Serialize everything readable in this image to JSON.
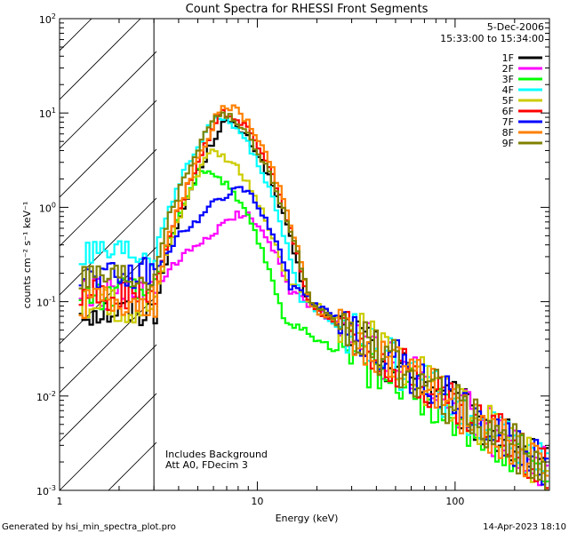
{
  "chart_data": {
    "type": "line",
    "title": "Count Spectra for RHESSI Front Segments",
    "xlabel": "Energy (keV)",
    "ylabel": "counts cm⁻² s⁻¹ keV⁻¹",
    "xscale": "log",
    "yscale": "log",
    "xlim": [
      1,
      300
    ],
    "ylim": [
      0.001,
      100
    ],
    "x_ticks": [
      {
        "value": 1,
        "label": "1"
      },
      {
        "value": 10,
        "label": "10"
      },
      {
        "value": 100,
        "label": "100"
      }
    ],
    "y_ticks": [
      {
        "value": 100,
        "base": "10",
        "exp": "2"
      },
      {
        "value": 10,
        "base": "10",
        "exp": "1"
      },
      {
        "value": 1,
        "base": "10",
        "exp": "0"
      },
      {
        "value": 0.1,
        "base": "10",
        "exp": "-1"
      },
      {
        "value": 0.01,
        "base": "10",
        "exp": "-2"
      },
      {
        "value": 0.001,
        "base": "10",
        "exp": "-3"
      }
    ],
    "hatched_region": {
      "x_min": 1,
      "x_max": 3
    },
    "date": "5-Dec-2006",
    "time_range": "15:33:00 to 15:34:00",
    "annotations": [
      "Includes Background",
      "Att A0, FDecim 3"
    ],
    "series": [
      {
        "name": "1F",
        "color": "#000000",
        "peak_energy": 6.5,
        "peak": 8.0,
        "low_energy": 0.08,
        "width": 0.5,
        "tail_at_20keV": 0.08
      },
      {
        "name": "2F",
        "color": "#ff00ff",
        "peak_energy": 8.0,
        "peak": 0.85,
        "low_energy": 0.12,
        "width": 0.45,
        "tail_at_20keV": 0.08
      },
      {
        "name": "3F",
        "color": "#00ff00",
        "peak_energy": 5.0,
        "peak": 2.5,
        "low_energy": 0.12,
        "width": 0.55,
        "tail_at_20keV": 0.04
      },
      {
        "name": "4F",
        "color": "#00ffff",
        "peak_energy": 6.0,
        "peak": 9.0,
        "low_energy": 0.3,
        "width": 0.5,
        "tail_at_20keV": 0.08
      },
      {
        "name": "5F",
        "color": "#cccc00",
        "peak_energy": 5.5,
        "peak": 4.0,
        "low_energy": 0.09,
        "width": 0.55,
        "tail_at_20keV": 0.09
      },
      {
        "name": "6F",
        "color": "#ff0000",
        "peak_energy": 6.5,
        "peak": 10.0,
        "low_energy": 0.12,
        "width": 0.5,
        "tail_at_20keV": 0.08
      },
      {
        "name": "7F",
        "color": "#0000ff",
        "peak_energy": 7.5,
        "peak": 1.6,
        "low_energy": 0.2,
        "width": 0.45,
        "tail_at_20keV": 0.09
      },
      {
        "name": "8F",
        "color": "#ff8000",
        "peak_energy": 6.5,
        "peak": 12.0,
        "low_energy": 0.1,
        "width": 0.5,
        "tail_at_20keV": 0.08
      },
      {
        "name": "9F",
        "color": "#808000",
        "peak_energy": 6.0,
        "peak": 10.0,
        "low_energy": 0.2,
        "width": 0.55,
        "tail_at_20keV": 0.08
      }
    ]
  },
  "footer": {
    "left": "Generated by hsi_min_spectra_plot.pro",
    "right": "14-Apr-2023 18:10"
  }
}
